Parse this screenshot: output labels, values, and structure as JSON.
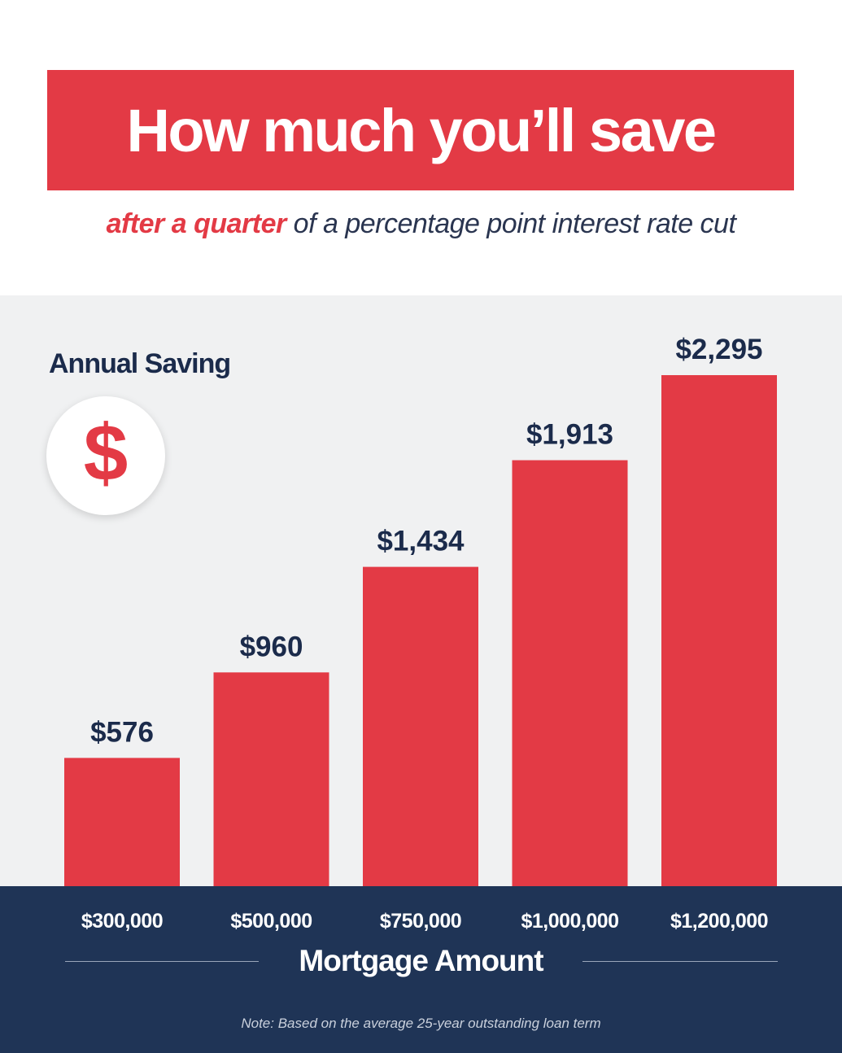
{
  "header": {
    "title": "How much you’ll save",
    "subtitle_emphasis": "after a quarter",
    "subtitle_rest": " of a percentage point interest rate cut"
  },
  "badge": {
    "icon": "dollar-icon",
    "glyph": "$"
  },
  "colors": {
    "accent": "#e33a45",
    "navy": "#1f3456",
    "text_dark": "#1b2b4b",
    "panel_bg": "#f0f1f2"
  },
  "chart_data": {
    "type": "bar",
    "title": "How much you’ll save",
    "subtitle": "after a quarter of a percentage point interest rate cut",
    "ylabel": "Annual Saving",
    "xlabel": "Mortgage Amount",
    "categories": [
      "$300,000",
      "$500,000",
      "$750,000",
      "$1,000,000",
      "$1,200,000"
    ],
    "values": [
      576,
      960,
      1434,
      1913,
      2295
    ],
    "value_labels": [
      "$576",
      "$960",
      "$1,434",
      "$1,913",
      "$2,295"
    ],
    "ylim": [
      0,
      2295
    ],
    "grid": false,
    "legend": "none",
    "note": "Note: Based on the average 25-year outstanding loan term"
  }
}
